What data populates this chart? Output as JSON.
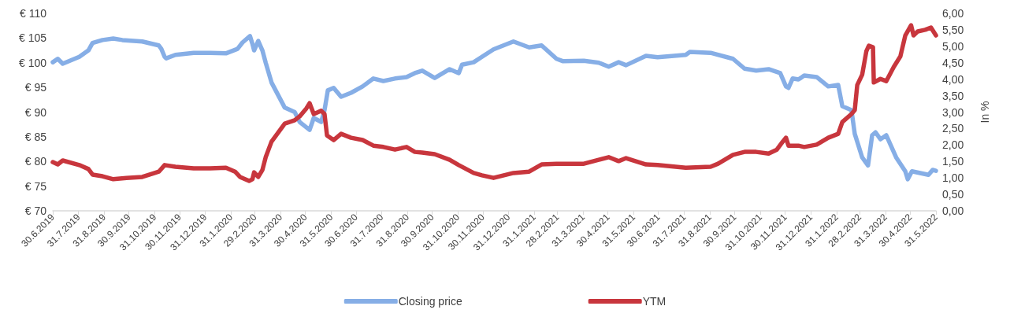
{
  "chart_data": {
    "type": "line",
    "y2label": "In %",
    "legend": "bottom",
    "grid": false,
    "marker": "none",
    "line_style": "solid",
    "xlim": [
      "2019-06-30",
      "2022-05-31"
    ],
    "xticks": [
      {
        "value": "2019-06-30",
        "label": "30.6.2019"
      },
      {
        "value": "2019-07-31",
        "label": "31.7.2019"
      },
      {
        "value": "2019-08-31",
        "label": "31.8.2019"
      },
      {
        "value": "2019-09-30",
        "label": "30.9.2019"
      },
      {
        "value": "2019-10-31",
        "label": "31.10.2019"
      },
      {
        "value": "2019-11-30",
        "label": "30.11.2019"
      },
      {
        "value": "2019-12-31",
        "label": "31.12.2019"
      },
      {
        "value": "2020-01-31",
        "label": "31.1.2020"
      },
      {
        "value": "2020-02-29",
        "label": "29.2.2020"
      },
      {
        "value": "2020-03-31",
        "label": "31.3.2020"
      },
      {
        "value": "2020-04-30",
        "label": "30.4.2020"
      },
      {
        "value": "2020-05-31",
        "label": "31.5.2020"
      },
      {
        "value": "2020-06-30",
        "label": "30.6.2020"
      },
      {
        "value": "2020-07-31",
        "label": "31.7.2020"
      },
      {
        "value": "2020-08-31",
        "label": "31.8.2020"
      },
      {
        "value": "2020-09-30",
        "label": "30.9.2020"
      },
      {
        "value": "2020-10-31",
        "label": "31.10.2020"
      },
      {
        "value": "2020-11-30",
        "label": "30.11.2020"
      },
      {
        "value": "2020-12-31",
        "label": "31.12.2020"
      },
      {
        "value": "2021-01-31",
        "label": "31.1.2021"
      },
      {
        "value": "2021-02-28",
        "label": "28.2.2021"
      },
      {
        "value": "2021-03-31",
        "label": "31.3.2021"
      },
      {
        "value": "2021-04-30",
        "label": "30.4.2021"
      },
      {
        "value": "2021-05-31",
        "label": "31.5.2021"
      },
      {
        "value": "2021-06-30",
        "label": "30.6.2021"
      },
      {
        "value": "2021-07-31",
        "label": "31.7.2021"
      },
      {
        "value": "2021-08-31",
        "label": "31.8.2021"
      },
      {
        "value": "2021-09-30",
        "label": "30.9.2021"
      },
      {
        "value": "2021-10-31",
        "label": "31.10.2021"
      },
      {
        "value": "2021-11-30",
        "label": "30.11.2021"
      },
      {
        "value": "2021-12-31",
        "label": "31.12.2021"
      },
      {
        "value": "2022-01-31",
        "label": "31.1.2022"
      },
      {
        "value": "2022-02-28",
        "label": "28.2.2022"
      },
      {
        "value": "2022-03-31",
        "label": "31.3.2022"
      },
      {
        "value": "2022-04-30",
        "label": "30.4.2022"
      },
      {
        "value": "2022-05-31",
        "label": "31.5.2022"
      }
    ],
    "ylim": [
      70,
      110
    ],
    "yticks": [
      {
        "value": 70,
        "label": "€ 70"
      },
      {
        "value": 75,
        "label": "€ 75"
      },
      {
        "value": 80,
        "label": "€ 80"
      },
      {
        "value": 85,
        "label": "€ 85"
      },
      {
        "value": 90,
        "label": "€ 90"
      },
      {
        "value": 95,
        "label": "€ 95"
      },
      {
        "value": 100,
        "label": "€ 100"
      },
      {
        "value": 105,
        "label": "€ 105"
      },
      {
        "value": 110,
        "label": "€ 110"
      }
    ],
    "y2lim": [
      0,
      6
    ],
    "y2ticks": [
      {
        "value": 0,
        "label": "0,00"
      },
      {
        "value": 0.5,
        "label": "0,50"
      },
      {
        "value": 1,
        "label": "1,00"
      },
      {
        "value": 1.5,
        "label": "1,50"
      },
      {
        "value": 2,
        "label": "2,00"
      },
      {
        "value": 2.5,
        "label": "2,50"
      },
      {
        "value": 3,
        "label": "3,00"
      },
      {
        "value": 3.5,
        "label": "3,50"
      },
      {
        "value": 4,
        "label": "4,00"
      },
      {
        "value": 4.5,
        "label": "4,50"
      },
      {
        "value": 5,
        "label": "5,00"
      },
      {
        "value": 5.5,
        "label": "5,50"
      },
      {
        "value": 6,
        "label": "6,00"
      }
    ],
    "series": [
      {
        "name": "Closing price",
        "color": "#86aee6",
        "x": [
          "2019-06-30",
          "2019-07-06",
          "2019-07-12",
          "2019-08-01",
          "2019-08-12",
          "2019-08-17",
          "2019-08-29",
          "2019-09-11",
          "2019-09-22",
          "2019-10-16",
          "2019-11-05",
          "2019-11-08",
          "2019-11-12",
          "2019-11-14",
          "2019-11-25",
          "2019-12-17",
          "2020-01-06",
          "2020-01-25",
          "2020-02-08",
          "2020-02-14",
          "2020-02-23",
          "2020-02-26",
          "2020-02-28",
          "2020-03-04",
          "2020-03-09",
          "2020-03-13",
          "2020-03-20",
          "2020-04-05",
          "2020-04-17",
          "2020-04-23",
          "2020-05-05",
          "2020-05-10",
          "2020-05-19",
          "2020-05-23",
          "2020-05-27",
          "2020-06-03",
          "2020-06-12",
          "2020-06-24",
          "2020-07-08",
          "2020-07-21",
          "2020-08-02",
          "2020-08-16",
          "2020-08-30",
          "2020-09-09",
          "2020-09-18",
          "2020-10-03",
          "2020-10-21",
          "2020-11-01",
          "2020-11-05",
          "2020-11-19",
          "2020-11-29",
          "2020-12-13",
          "2021-01-06",
          "2021-01-25",
          "2021-02-09",
          "2021-02-27",
          "2021-03-07",
          "2021-04-01",
          "2021-04-19",
          "2021-05-01",
          "2021-05-13",
          "2021-05-22",
          "2021-06-15",
          "2021-06-29",
          "2021-08-02",
          "2021-08-07",
          "2021-09-01",
          "2021-09-28",
          "2021-10-12",
          "2021-10-26",
          "2021-11-10",
          "2021-11-24",
          "2021-12-01",
          "2021-12-04",
          "2021-12-09",
          "2021-12-16",
          "2021-12-23",
          "2022-01-07",
          "2022-01-21",
          "2022-02-02",
          "2022-02-07",
          "2022-02-18",
          "2022-02-22",
          "2022-03-03",
          "2022-03-10",
          "2022-03-15",
          "2022-03-19",
          "2022-03-25",
          "2022-04-01",
          "2022-04-13",
          "2022-04-24",
          "2022-04-27",
          "2022-05-02",
          "2022-05-13",
          "2022-05-22",
          "2022-05-27",
          "2022-05-31"
        ],
        "values": [
          100.1,
          100.8,
          99.8,
          101.2,
          102.5,
          104,
          104.6,
          104.9,
          104.6,
          104.3,
          103.5,
          102.8,
          101.2,
          100.9,
          101.6,
          102,
          102,
          101.9,
          102.8,
          104.1,
          105.4,
          103.8,
          102.5,
          104.4,
          102.5,
          100,
          96,
          90.9,
          90,
          88,
          86.4,
          88.8,
          88,
          90.4,
          94.4,
          94.9,
          93.1,
          93.9,
          95.2,
          96.8,
          96.3,
          96.8,
          97.1,
          97.9,
          98.4,
          96.9,
          98.7,
          97.9,
          99.6,
          100.1,
          101.2,
          102.7,
          104.3,
          103.1,
          103.5,
          100.8,
          100.3,
          100.4,
          100,
          99.2,
          100.1,
          99.5,
          101.4,
          101.1,
          101.6,
          102.2,
          102,
          100.8,
          98.8,
          98.4,
          98.7,
          97.9,
          95.2,
          94.9,
          96.8,
          96.6,
          97.4,
          97.1,
          95.2,
          95.5,
          91.2,
          90.4,
          85.6,
          80.8,
          79.2,
          85.3,
          85.9,
          84.5,
          85.3,
          80.8,
          78,
          76.4,
          78,
          77.6,
          77.3,
          78.3,
          78.1
        ]
      },
      {
        "name": "YTM",
        "color": "#c8363d",
        "axis": "y2",
        "x": [
          "2019-06-30",
          "2019-07-06",
          "2019-07-12",
          "2019-08-01",
          "2019-08-12",
          "2019-08-17",
          "2019-08-29",
          "2019-09-11",
          "2019-09-27",
          "2019-10-16",
          "2019-10-31",
          "2019-11-05",
          "2019-11-12",
          "2019-11-25",
          "2019-12-17",
          "2020-01-06",
          "2020-01-25",
          "2020-02-05",
          "2020-02-11",
          "2020-02-22",
          "2020-02-26",
          "2020-02-28",
          "2020-03-04",
          "2020-03-09",
          "2020-03-13",
          "2020-03-20",
          "2020-04-05",
          "2020-04-17",
          "2020-04-23",
          "2020-05-01",
          "2020-05-05",
          "2020-05-10",
          "2020-05-19",
          "2020-05-23",
          "2020-05-26",
          "2020-06-03",
          "2020-06-12",
          "2020-06-24",
          "2020-07-08",
          "2020-07-21",
          "2020-08-02",
          "2020-08-16",
          "2020-08-30",
          "2020-09-09",
          "2020-09-18",
          "2020-10-03",
          "2020-10-21",
          "2020-11-01",
          "2020-11-19",
          "2020-11-29",
          "2020-12-13",
          "2021-01-06",
          "2021-01-25",
          "2021-02-09",
          "2021-02-27",
          "2021-03-07",
          "2021-04-01",
          "2021-04-19",
          "2021-05-01",
          "2021-05-13",
          "2021-05-22",
          "2021-06-15",
          "2021-06-29",
          "2021-08-02",
          "2021-09-01",
          "2021-09-10",
          "2021-09-28",
          "2021-10-12",
          "2021-10-26",
          "2021-11-10",
          "2021-11-20",
          "2021-11-27",
          "2021-12-01",
          "2021-12-04",
          "2021-12-16",
          "2021-12-23",
          "2022-01-07",
          "2022-01-21",
          "2022-02-02",
          "2022-02-07",
          "2022-02-18",
          "2022-02-22",
          "2022-02-25",
          "2022-03-03",
          "2022-03-08",
          "2022-03-11",
          "2022-03-16",
          "2022-03-17",
          "2022-03-25",
          "2022-04-01",
          "2022-04-10",
          "2022-04-18",
          "2022-04-24",
          "2022-05-01",
          "2022-05-04",
          "2022-05-09",
          "2022-05-18",
          "2022-05-25",
          "2022-05-31"
        ],
        "values": [
          1.48,
          1.41,
          1.53,
          1.39,
          1.27,
          1.1,
          1.05,
          0.96,
          1.0,
          1.03,
          1.15,
          1.19,
          1.39,
          1.34,
          1.29,
          1.29,
          1.31,
          1.19,
          1.03,
          0.91,
          0.96,
          1.17,
          1.03,
          1.24,
          1.63,
          2.1,
          2.65,
          2.75,
          2.87,
          3.11,
          3.27,
          2.94,
          3.04,
          2.94,
          2.29,
          2.15,
          2.34,
          2.22,
          2.15,
          1.98,
          1.94,
          1.86,
          1.94,
          1.79,
          1.77,
          1.72,
          1.55,
          1.39,
          1.15,
          1.08,
          1.0,
          1.15,
          1.19,
          1.41,
          1.43,
          1.43,
          1.43,
          1.55,
          1.63,
          1.51,
          1.6,
          1.41,
          1.39,
          1.31,
          1.34,
          1.43,
          1.7,
          1.79,
          1.79,
          1.74,
          1.86,
          2.1,
          2.22,
          1.98,
          1.98,
          1.94,
          2.01,
          2.22,
          2.34,
          2.7,
          2.94,
          3.06,
          3.82,
          4.14,
          4.85,
          5.02,
          4.97,
          3.9,
          4.01,
          3.94,
          4.37,
          4.69,
          5.33,
          5.64,
          5.33,
          5.45,
          5.5,
          5.57,
          5.33
        ]
      }
    ]
  }
}
